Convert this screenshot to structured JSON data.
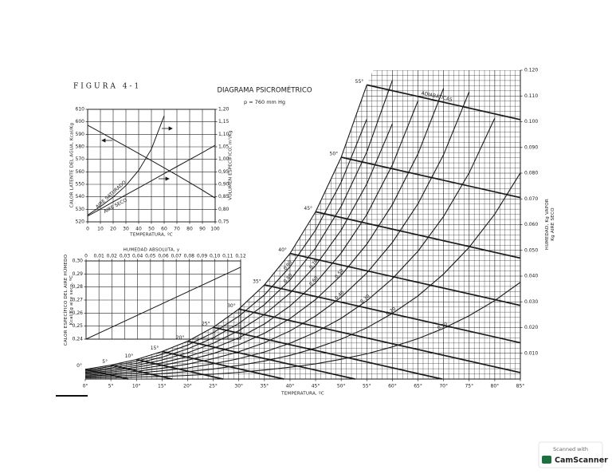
{
  "chart_data": [
    {
      "type": "psychrometric",
      "figure_label": "FIGURA 4-1",
      "title": "DIAGRAMA PSICROMÉTRICO",
      "subtitle": "p = 760 mm Hg",
      "xlabel": "TEMPERATURA, ºC",
      "ylabel": [
        "HUMEDAD, Kg VAPOR",
        "Kg AIRE SECO"
      ],
      "color": "#1a1a1a",
      "grid": true,
      "x": [
        0,
        5,
        10,
        15,
        20,
        25,
        30,
        35,
        40,
        45,
        50,
        55,
        60,
        65,
        70,
        75,
        80,
        85
      ],
      "xlim": [
        0,
        85
      ],
      "xticks": [
        {
          "value": 0,
          "label": "0°"
        },
        {
          "value": 5,
          "label": "5°"
        },
        {
          "value": 10,
          "label": "10°"
        },
        {
          "value": 15,
          "label": "15°"
        },
        {
          "value": 20,
          "label": "20°"
        },
        {
          "value": 25,
          "label": "25°"
        },
        {
          "value": 30,
          "label": "30°"
        },
        {
          "value": 35,
          "label": "35°"
        },
        {
          "value": 40,
          "label": "40°"
        },
        {
          "value": 45,
          "label": "45°"
        },
        {
          "value": 50,
          "label": "50°"
        },
        {
          "value": 55,
          "label": "55°"
        },
        {
          "value": 60,
          "label": "60°"
        },
        {
          "value": 65,
          "label": "65°"
        },
        {
          "value": 70,
          "label": "70°"
        },
        {
          "value": 75,
          "label": "75°"
        },
        {
          "value": 80,
          "label": "80°"
        },
        {
          "value": 85,
          "label": "85°"
        }
      ],
      "ylim": [
        0,
        0.12
      ],
      "yticks": [
        {
          "value": 0.01,
          "label": "0.010"
        },
        {
          "value": 0.02,
          "label": "0.020"
        },
        {
          "value": 0.03,
          "label": "0.030"
        },
        {
          "value": 0.04,
          "label": "0.040"
        },
        {
          "value": 0.05,
          "label": "0.050"
        },
        {
          "value": 0.06,
          "label": "0.060"
        },
        {
          "value": 0.07,
          "label": "0.070"
        },
        {
          "value": 0.08,
          "label": "0.080"
        },
        {
          "value": 0.09,
          "label": "0.090"
        },
        {
          "value": 0.1,
          "label": "0.100"
        },
        {
          "value": 0.11,
          "label": "0.110"
        },
        {
          "value": 0.12,
          "label": "0.120"
        }
      ],
      "series": [
        {
          "name": "0.10",
          "values": [
            0.0004,
            0.0005,
            0.0008,
            0.001,
            0.0014,
            0.0019,
            0.0026,
            0.0035,
            0.0046,
            0.0059,
            0.0077,
            0.0098,
            0.0125,
            0.0157,
            0.0197,
            0.0246,
            0.0305,
            0.0376
          ]
        },
        {
          "name": "0.20",
          "values": [
            0.0008,
            0.0011,
            0.0015,
            0.0021,
            0.0029,
            0.0039,
            0.0053,
            0.007,
            0.0092,
            0.012,
            0.0155,
            0.0199,
            0.0255,
            0.0323,
            0.0408,
            0.0512,
            0.0641,
            0.0801
          ]
        },
        {
          "name": "0.30",
          "values": [
            0.0011,
            0.0016,
            0.0023,
            0.0032,
            0.0043,
            0.0059,
            0.0079,
            0.0105,
            0.0139,
            0.0182,
            0.0236,
            0.0304,
            0.039,
            0.0497,
            0.0632,
            0.0801,
            0.1014,
            null
          ]
        },
        {
          "name": "0.40",
          "values": [
            0.0015,
            0.0021,
            0.003,
            0.0042,
            0.0058,
            0.0079,
            0.0106,
            0.0141,
            0.0187,
            0.0245,
            0.0318,
            0.0412,
            0.0531,
            0.0681,
            0.0872,
            0.1116,
            null,
            null
          ]
        },
        {
          "name": "0.50",
          "values": [
            0.0019,
            0.0027,
            0.0038,
            0.0053,
            0.0073,
            0.0099,
            0.0133,
            0.0178,
            0.0235,
            0.0309,
            0.0403,
            0.0524,
            0.0678,
            0.0875,
            0.113,
            null,
            null,
            null
          ]
        },
        {
          "name": "0.60",
          "values": [
            0.0023,
            0.0032,
            0.0046,
            0.0063,
            0.0087,
            0.0119,
            0.016,
            0.0214,
            0.0284,
            0.0374,
            0.049,
            0.0639,
            0.0832,
            0.1081,
            null,
            null,
            null,
            null
          ]
        },
        {
          "name": "0.70",
          "values": [
            0.0026,
            0.0038,
            0.0053,
            0.0074,
            0.0102,
            0.0139,
            0.0188,
            0.0251,
            0.0334,
            0.0441,
            0.0579,
            0.0758,
            0.0992,
            null,
            null,
            null,
            null,
            null
          ]
        },
        {
          "name": "0.80",
          "values": [
            0.003,
            0.0043,
            0.0061,
            0.0085,
            0.0117,
            0.016,
            0.0216,
            0.0289,
            0.0385,
            0.0509,
            0.0671,
            0.0882,
            0.1161,
            null,
            null,
            null,
            null,
            null
          ]
        },
        {
          "name": "0.90",
          "values": [
            0.0034,
            0.0049,
            0.0069,
            0.0096,
            0.0132,
            0.018,
            0.0244,
            0.0327,
            0.0436,
            0.0579,
            0.0765,
            0.101,
            null,
            null,
            null,
            null,
            null,
            null
          ]
        },
        {
          "values": [
            0.0038,
            0.0054,
            0.0076,
            0.0107,
            0.0147,
            0.0201,
            0.0272,
            0.0366,
            0.0488,
            0.065,
            0.0862,
            0.1143,
            null,
            null,
            null,
            null,
            null,
            null
          ]
        }
      ],
      "adiabatic_label": "ADIABÁTICAS",
      "adiabatic_lines": [
        {
          "label": "55°",
          "x": [
            55,
            85
          ],
          "values": [
            0.1143,
            0.1008
          ]
        },
        {
          "label": "50°",
          "x": [
            50,
            85
          ],
          "values": [
            0.0862,
            0.0705
          ]
        },
        {
          "label": "45°",
          "x": [
            45,
            85
          ],
          "values": [
            0.065,
            0.047
          ]
        },
        {
          "label": "40°",
          "x": [
            40,
            85
          ],
          "values": [
            0.0488,
            0.0286
          ]
        },
        {
          "label": "35°",
          "x": [
            35,
            85
          ],
          "values": [
            0.0366,
            0.0141
          ]
        },
        {
          "label": "30°",
          "x": [
            30,
            85
          ],
          "values": [
            0.0272,
            0.0025
          ]
        },
        {
          "label": "25°",
          "x": [
            25,
            69.7
          ],
          "values": [
            0.0201,
            0
          ]
        },
        {
          "label": "20°",
          "x": [
            20,
            52.7
          ],
          "values": [
            0.0147,
            0
          ]
        },
        {
          "label": "15°",
          "x": [
            15,
            38.8
          ],
          "values": [
            0.0107,
            0
          ]
        },
        {
          "label": "10°",
          "x": [
            10,
            26.9
          ],
          "values": [
            0.0076,
            0
          ]
        },
        {
          "label": "5°",
          "x": [
            5,
            17
          ],
          "values": [
            0.0054,
            0
          ]
        },
        {
          "label": "0°",
          "x": [
            0,
            8.4
          ],
          "values": [
            0.0038,
            0
          ]
        }
      ]
    },
    {
      "type": "line",
      "xlabel": "TEMPERATURA, ºC",
      "ylabel": "CALOR LATENTE DEL AGUA, Kcal/Kg",
      "y2label": "VOLUMEN ESPECÍFICO, m³/Kg",
      "color": "#1a1a1a",
      "grid": true,
      "x": [
        0,
        10,
        20,
        30,
        40,
        50,
        60,
        70,
        80,
        90,
        100
      ],
      "xlim": [
        0,
        100
      ],
      "xticks": [
        0,
        10,
        20,
        30,
        40,
        50,
        60,
        70,
        80,
        90,
        100
      ],
      "ylim": [
        520,
        610
      ],
      "yticks": [
        520,
        530,
        540,
        550,
        560,
        570,
        580,
        590,
        600,
        610
      ],
      "y2lim": [
        0.75,
        1.2
      ],
      "y2ticks": [
        {
          "value": 0.75,
          "label": "0,75"
        },
        {
          "value": 0.8,
          "label": "0,80"
        },
        {
          "value": 0.85,
          "label": "0,85"
        },
        {
          "value": 0.9,
          "label": "0,90"
        },
        {
          "value": 0.95,
          "label": "0,95"
        },
        {
          "value": 1.0,
          "label": "1,00"
        },
        {
          "value": 1.05,
          "label": "1,05"
        },
        {
          "value": 1.1,
          "label": "1,10"
        },
        {
          "value": 1.15,
          "label": "1,15"
        },
        {
          "value": 1.2,
          "label": "1,20"
        }
      ],
      "series": [
        {
          "values": [
            597.3,
            591.7,
            586.0,
            580.4,
            574.7,
            569.0,
            563.2,
            557.4,
            551.4,
            545.3,
            539.0
          ]
        },
        {
          "name": "AIRE SATURADO",
          "axis": "y2",
          "values": [
            0.777,
            0.811,
            0.849,
            0.895,
            0.956,
            1.041,
            1.174,
            null,
            null,
            null,
            null
          ]
        },
        {
          "name": "AIRE SECO",
          "axis": "y2",
          "values": [
            0.773,
            0.801,
            0.83,
            0.858,
            0.886,
            0.914,
            0.943,
            0.971,
            0.999,
            1.027,
            1.056
          ]
        }
      ]
    },
    {
      "type": "line",
      "xlabel": "HUMEDAD ABSOLUTA, y",
      "ylabel": [
        "CALOR ESPECÍFICO DEL AIRE HÚMEDO",
        "Kcal/Kg aire seco, ºC"
      ],
      "color": "#1a1a1a",
      "grid": true,
      "x": [
        0,
        0.12
      ],
      "xlim": [
        0,
        0.12
      ],
      "xticks": [
        0,
        {
          "value": 0.01,
          "label": "0,01"
        },
        {
          "value": 0.02,
          "label": "0,02"
        },
        {
          "value": 0.03,
          "label": "0,03"
        },
        {
          "value": 0.04,
          "label": "0,04"
        },
        {
          "value": 0.05,
          "label": "0,05"
        },
        {
          "value": 0.06,
          "label": "0,06"
        },
        {
          "value": 0.07,
          "label": "0,07"
        },
        {
          "value": 0.08,
          "label": "0,08"
        },
        {
          "value": 0.09,
          "label": "0,09"
        },
        {
          "value": 0.1,
          "label": "0,10"
        },
        {
          "value": 0.11,
          "label": "0,11"
        },
        {
          "value": 0.12,
          "label": "0,12"
        }
      ],
      "ylim": [
        0.24,
        0.3
      ],
      "yticks": [
        {
          "value": 0.24,
          "label": "0,24"
        },
        {
          "value": 0.25,
          "label": "0,25"
        },
        {
          "value": 0.26,
          "label": "0,26"
        },
        {
          "value": 0.27,
          "label": "0,27"
        },
        {
          "value": 0.28,
          "label": "0,28"
        },
        {
          "value": 0.29,
          "label": "0,29"
        },
        {
          "value": 0.3,
          "label": "0,30"
        }
      ],
      "series": [
        {
          "values": [
            0.24,
            0.2952
          ]
        }
      ]
    }
  ],
  "watermark": {
    "line1": "Scanned with",
    "brand": "CamScanner"
  }
}
